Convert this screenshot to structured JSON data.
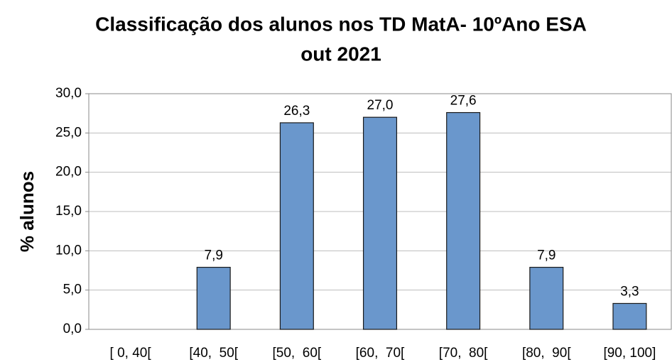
{
  "chart_data": {
    "type": "bar",
    "title": [
      "Classificação dos alunos nos TD MatA- 10ºAno ESA",
      "out 2021"
    ],
    "ylabel": "% alunos",
    "categories": [
      "[ 0, 40[",
      "[40,  50[",
      "[50,  60[",
      "[60,  70[",
      "[70,  80[",
      "[80,  90[",
      "[90, 100]"
    ],
    "values": [
      null,
      7.9,
      26.3,
      27.0,
      27.6,
      7.9,
      3.3
    ],
    "value_labels": [
      null,
      "7,9",
      "26,3",
      "27,0",
      "27,6",
      "7,9",
      "3,3"
    ],
    "color": "#6a97cc",
    "ylim": [
      0,
      30
    ],
    "yticks": [
      {
        "value": 0,
        "label": "0,0"
      },
      {
        "value": 5,
        "label": "5,0"
      },
      {
        "value": 10,
        "label": "10,0"
      },
      {
        "value": 15,
        "label": "15,0"
      },
      {
        "value": 20,
        "label": "20,0"
      },
      {
        "value": 25,
        "label": "25,0"
      },
      {
        "value": 30,
        "label": "30,0"
      }
    ],
    "grid": true
  }
}
